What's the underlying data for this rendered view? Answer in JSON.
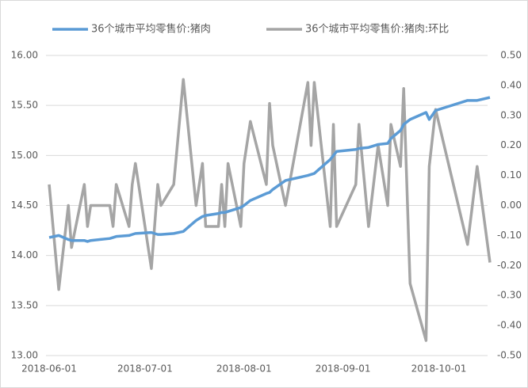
{
  "chart_data": {
    "type": "line",
    "x": [
      "2018-06-01",
      "2018-06-04",
      "2018-06-07",
      "2018-06-08",
      "2018-06-12",
      "2018-06-13",
      "2018-06-14",
      "2018-06-20",
      "2018-06-21",
      "2018-06-22",
      "2018-06-26",
      "2018-06-27",
      "2018-06-28",
      "2018-07-03",
      "2018-07-05",
      "2018-07-06",
      "2018-07-10",
      "2018-07-13",
      "2018-07-17",
      "2018-07-19",
      "2018-07-20",
      "2018-07-24",
      "2018-07-25",
      "2018-07-26",
      "2018-07-27",
      "2018-07-31",
      "2018-08-01",
      "2018-08-03",
      "2018-08-08",
      "2018-08-09",
      "2018-08-10",
      "2018-08-14",
      "2018-08-21",
      "2018-08-22",
      "2018-08-23",
      "2018-08-28",
      "2018-08-29",
      "2018-08-30",
      "2018-09-05",
      "2018-09-06",
      "2018-09-09",
      "2018-09-12",
      "2018-09-15",
      "2018-09-16",
      "2018-09-19",
      "2018-09-20",
      "2018-09-22",
      "2018-09-27",
      "2018-09-28",
      "2018-09-30",
      "2018-10-10",
      "2018-10-13",
      "2018-10-17"
    ],
    "series": [
      {
        "name": "36个城市平均零售价:猪肉",
        "color": "#5b9bd5",
        "values": [
          14.18,
          14.2,
          14.16,
          14.15,
          14.15,
          14.14,
          14.15,
          14.17,
          14.18,
          14.19,
          14.2,
          14.21,
          14.22,
          14.23,
          14.21,
          14.21,
          14.22,
          14.24,
          14.35,
          14.39,
          14.4,
          14.42,
          14.43,
          14.43,
          14.44,
          14.48,
          14.5,
          14.55,
          14.62,
          14.63,
          14.66,
          14.75,
          14.8,
          14.81,
          14.82,
          14.96,
          15.0,
          15.04,
          15.06,
          15.07,
          15.08,
          15.11,
          15.12,
          15.17,
          15.25,
          15.31,
          15.36,
          15.43,
          15.36,
          15.45,
          15.55,
          15.55,
          15.58
        ]
      },
      {
        "name": "36个城市平均零售价:猪肉:环比",
        "color": "#a5a5a5",
        "axis": "y2",
        "values": [
          0.07,
          -0.28,
          0,
          -0.14,
          0.07,
          -0.07,
          0,
          0,
          -0.07,
          0.07,
          -0.07,
          0.07,
          0.14,
          -0.21,
          0.07,
          0,
          0.07,
          0.42,
          0,
          0.14,
          -0.07,
          -0.07,
          0.07,
          -0.07,
          0.14,
          -0.07,
          0.14,
          0.28,
          0.07,
          0.34,
          0.2,
          0,
          0.41,
          0.2,
          0.41,
          -0.07,
          0.27,
          -0.07,
          0.07,
          0.27,
          -0.07,
          0.2,
          0,
          0.27,
          0.13,
          0.39,
          -0.26,
          -0.45,
          0.13,
          0.32,
          -0.13,
          0.13,
          -0.19
        ]
      }
    ],
    "xlim": [
      "2018-05-31",
      "2018-10-18"
    ],
    "xticks": [
      "2018-06-01",
      "2018-07-01",
      "2018-08-01",
      "2018-09-01",
      "2018-10-01"
    ],
    "ylim": [
      13,
      16
    ],
    "yticks": [
      {
        "value": 13,
        "label": "13.00"
      },
      {
        "value": 13.5,
        "label": "13.50"
      },
      {
        "value": 14,
        "label": "14.00"
      },
      {
        "value": 14.5,
        "label": "14.50"
      },
      {
        "value": 15,
        "label": "15.00"
      },
      {
        "value": 15.5,
        "label": "15.50"
      },
      {
        "value": 16,
        "label": "16.00"
      }
    ],
    "y2lim": [
      -0.5,
      0.5
    ],
    "y2ticks": [
      {
        "value": -0.5,
        "label": "-0.50"
      },
      {
        "value": -0.4,
        "label": "-0.40"
      },
      {
        "value": -0.3,
        "label": "-0.30"
      },
      {
        "value": -0.2,
        "label": "-0.20"
      },
      {
        "value": -0.1,
        "label": "-0.10"
      },
      {
        "value": 0,
        "label": "0.00"
      },
      {
        "value": 0.1,
        "label": "0.10"
      },
      {
        "value": 0.2,
        "label": "0.20"
      },
      {
        "value": 0.3,
        "label": "0.30"
      },
      {
        "value": 0.4,
        "label": "0.40"
      },
      {
        "value": 0.5,
        "label": "0.50"
      }
    ],
    "grid": true,
    "legend": "top"
  }
}
